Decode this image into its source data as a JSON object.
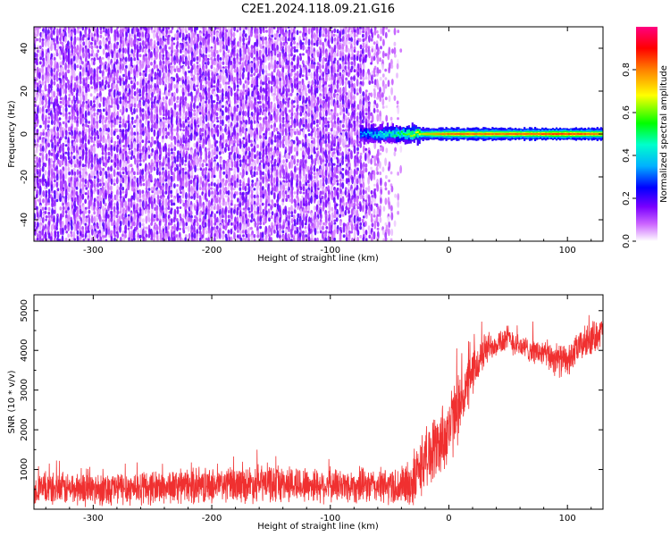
{
  "title": "C2E1.2024.118.09.21.G16",
  "chart_data": [
    {
      "type": "heatmap",
      "xlabel": "Height of straight line (km)",
      "ylabel": "Frequency (Hz)",
      "xlim": [
        -350,
        130
      ],
      "ylim": [
        -50,
        50
      ],
      "xticks": [
        -300,
        -200,
        -100,
        0,
        100
      ],
      "yticks": [
        -40,
        -20,
        0,
        20,
        40
      ],
      "colorbar": {
        "label": "Normalized spectral amplitude",
        "range": [
          0,
          1
        ],
        "ticks": [
          "0.0",
          "0.2",
          "0.4",
          "0.6",
          "0.8"
        ],
        "colors": [
          "#e6d8f7",
          "#7a00ff",
          "#0000ff",
          "#00e5ff",
          "#00ff00",
          "#ffff00",
          "#ff8000",
          "#ff0000",
          "#ff0080"
        ]
      },
      "noise_region_x": [
        -350,
        -40
      ],
      "signal_line": {
        "frequency_hz": 0,
        "x_range": [
          -75,
          130
        ],
        "amplitude_profile": [
          {
            "x": -75,
            "amp": 0.35
          },
          {
            "x": -55,
            "amp": 0.45
          },
          {
            "x": -40,
            "amp": 0.55
          },
          {
            "x": -20,
            "amp": 0.75
          },
          {
            "x": 0,
            "amp": 0.85
          },
          {
            "x": 50,
            "amp": 0.85
          },
          {
            "x": 90,
            "amp": 0.9
          },
          {
            "x": 130,
            "amp": 0.85
          }
        ]
      }
    },
    {
      "type": "line",
      "xlabel": "Height of straight line (km)",
      "ylabel": "SNR (10 * v/v)",
      "xlim": [
        -350,
        130
      ],
      "ylim": [
        0,
        5400
      ],
      "xticks": [
        -300,
        -200,
        -100,
        0,
        100
      ],
      "yticks": [
        1000,
        2000,
        3000,
        4000,
        5000
      ],
      "color": "#f03030",
      "series": [
        {
          "x": [
            -350,
            -300,
            -250,
            -200,
            -150,
            -100,
            -60,
            -40,
            -30,
            -20,
            -10,
            0,
            10,
            20,
            30,
            40,
            50,
            60,
            70,
            80,
            90,
            100,
            110,
            120,
            130
          ],
          "mean": [
            500,
            520,
            550,
            600,
            650,
            600,
            580,
            560,
            700,
            1300,
            1600,
            2000,
            2700,
            3400,
            4000,
            4200,
            4300,
            4100,
            4000,
            3900,
            3800,
            3700,
            4100,
            4300,
            4500
          ],
          "spread": [
            450,
            500,
            500,
            500,
            550,
            500,
            500,
            600,
            800,
            900,
            1000,
            1100,
            900,
            700,
            500,
            400,
            400,
            350,
            350,
            400,
            500,
            450,
            450,
            500,
            400
          ]
        }
      ]
    }
  ]
}
